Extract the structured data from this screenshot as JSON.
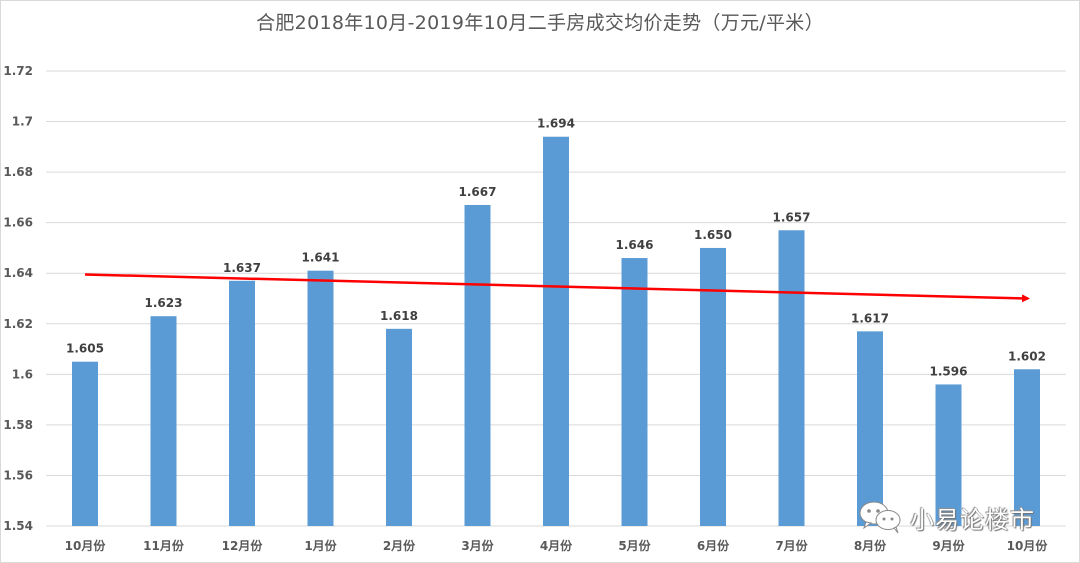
{
  "chart_data": {
    "type": "bar",
    "title": "合肥2018年10月-2019年10月二手房成交均价走势（万元/平米）",
    "xlabel": "",
    "ylabel": "",
    "categories": [
      "10月份",
      "11月份",
      "12月份",
      "1月份",
      "2月份",
      "3月份",
      "4月份",
      "5月份",
      "6月份",
      "7月份",
      "8月份",
      "9月份",
      "10月份"
    ],
    "series": [
      {
        "name": "二手房成交均价",
        "values": [
          1.605,
          1.623,
          1.637,
          1.641,
          1.618,
          1.667,
          1.694,
          1.646,
          1.65,
          1.657,
          1.617,
          1.596,
          1.602
        ],
        "labels": [
          "1.605",
          "1.623",
          "1.637",
          "1.641",
          "1.618",
          "1.667",
          "1.694",
          "1.646",
          "1.650",
          "1.657",
          "1.617",
          "1.596",
          "1.602"
        ],
        "color": "#5b9bd5"
      }
    ],
    "trend_line": {
      "color": "#ff0000",
      "start_value": 1.6395,
      "end_value": 1.63,
      "arrow": true
    },
    "ylim": [
      1.54,
      1.72
    ],
    "yticks": [
      "1.72",
      "1.7",
      "1.68",
      "1.66",
      "1.64",
      "1.62",
      "1.6",
      "1.58",
      "1.56",
      "1.54"
    ],
    "grid": true,
    "legend": null
  },
  "title": "合肥2018年10月-2019年10月二手房成交均价走势（万元/平米）",
  "watermark": {
    "icon": "wechat-icon",
    "text": "小易论楼市"
  },
  "colors": {
    "bar": "#5b9bd5",
    "trend": "#ff0000",
    "grid": "#d9d9d9",
    "text": "#595959"
  }
}
